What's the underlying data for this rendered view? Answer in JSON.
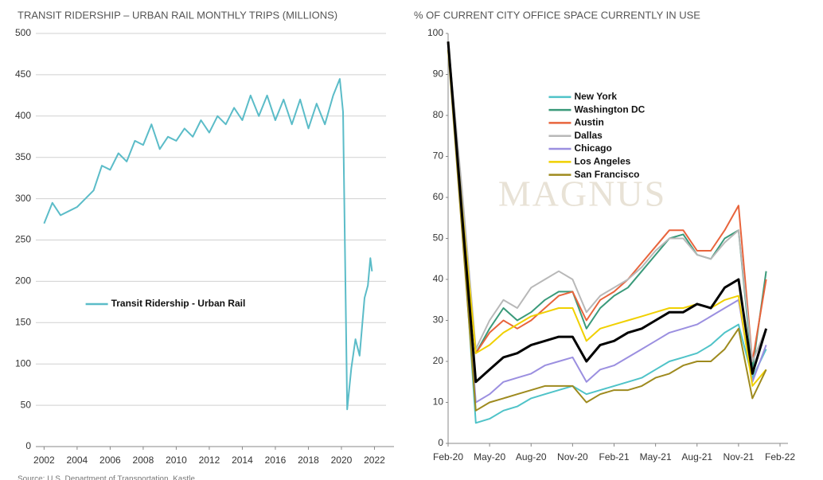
{
  "chart_data": [
    {
      "type": "line",
      "title": "TRANSIT RIDERSHIP – URBAN RAIL MONTHLY TRIPS (MILLIONS)",
      "source": "Source: U.S. Department of Transportation, Kastle",
      "xlim": [
        2001.5,
        2022.7
      ],
      "xticks": [
        2002,
        2004,
        2006,
        2008,
        2010,
        2012,
        2014,
        2016,
        2018,
        2020,
        2022
      ],
      "ylim": [
        0,
        500
      ],
      "yticks": [
        0,
        50,
        100,
        150,
        200,
        250,
        300,
        350,
        400,
        450,
        500
      ],
      "grid": true,
      "legend": "center-left",
      "x": [
        2002,
        2002.5,
        2003,
        2003.5,
        2004,
        2004.5,
        2005,
        2005.5,
        2006,
        2006.5,
        2007,
        2007.5,
        2008,
        2008.5,
        2009,
        2009.5,
        2010,
        2010.5,
        2011,
        2011.5,
        2012,
        2012.5,
        2013,
        2013.5,
        2014,
        2014.5,
        2015,
        2015.5,
        2016,
        2016.5,
        2017,
        2017.5,
        2018,
        2018.5,
        2019,
        2019.5,
        2019.9,
        2020.1,
        2020.35,
        2020.6,
        2020.85,
        2021.1,
        2021.4,
        2021.6,
        2021.75,
        2021.85
      ],
      "series": [
        {
          "name": "Transit Ridership - Urban Rail",
          "color": "#5bbcc8",
          "values": [
            270,
            295,
            280,
            285,
            290,
            300,
            310,
            340,
            335,
            355,
            345,
            370,
            365,
            390,
            360,
            375,
            370,
            385,
            375,
            395,
            380,
            400,
            390,
            410,
            395,
            425,
            400,
            425,
            395,
            420,
            390,
            420,
            385,
            415,
            390,
            425,
            445,
            405,
            45,
            95,
            130,
            110,
            180,
            195,
            228,
            212
          ]
        }
      ]
    },
    {
      "type": "line",
      "title": "% OF CURRENT CITY OFFICE SPACE CURRENTLY IN USE",
      "watermark": "MAGNUS",
      "xlim": [
        "2020-02",
        "2022-02"
      ],
      "xticks": [
        {
          "value": "2020-02",
          "label": "Feb-20"
        },
        {
          "value": "2020-05",
          "label": "May-20"
        },
        {
          "value": "2020-08",
          "label": "Aug-20"
        },
        {
          "value": "2020-11",
          "label": "Nov-20"
        },
        {
          "value": "2021-02",
          "label": "Feb-21"
        },
        {
          "value": "2021-05",
          "label": "May-21"
        },
        {
          "value": "2021-08",
          "label": "Aug-21"
        },
        {
          "value": "2021-11",
          "label": "Nov-21"
        },
        {
          "value": "2022-02",
          "label": "Feb-22"
        }
      ],
      "ylim": [
        0,
        100
      ],
      "yticks": [
        0,
        10,
        20,
        30,
        40,
        50,
        60,
        70,
        80,
        90,
        100
      ],
      "grid": false,
      "legend": "upper-center",
      "x": [
        "2020-02",
        "2020-03",
        "2020-04",
        "2020-05",
        "2020-06",
        "2020-07",
        "2020-08",
        "2020-09",
        "2020-10",
        "2020-11",
        "2020-12",
        "2021-01",
        "2021-02",
        "2021-03",
        "2021-04",
        "2021-05",
        "2021-06",
        "2021-07",
        "2021-08",
        "2021-09",
        "2021-10",
        "2021-11",
        "2021-12",
        "2022-01"
      ],
      "series": [
        {
          "name": "New York",
          "color": "#4fc3c8",
          "values": [
            98,
            55,
            5,
            6,
            8,
            9,
            11,
            12,
            13,
            14,
            12,
            13,
            14,
            15,
            16,
            18,
            20,
            21,
            22,
            24,
            27,
            29,
            16,
            23
          ]
        },
        {
          "name": "Washington DC",
          "color": "#3a9a7a",
          "values": [
            98,
            60,
            22,
            28,
            33,
            30,
            32,
            35,
            37,
            37,
            28,
            33,
            36,
            38,
            42,
            46,
            50,
            51,
            46,
            45,
            50,
            52,
            18,
            42
          ]
        },
        {
          "name": "Austin",
          "color": "#e8643c",
          "values": [
            98,
            60,
            22,
            27,
            30,
            28,
            30,
            33,
            36,
            37,
            30,
            35,
            37,
            40,
            44,
            48,
            52,
            52,
            47,
            47,
            52,
            58,
            20,
            40
          ]
        },
        {
          "name": "Dallas",
          "color": "#b8b8b8",
          "values": [
            98,
            62,
            23,
            30,
            35,
            33,
            38,
            40,
            42,
            40,
            32,
            36,
            38,
            40,
            43,
            47,
            50,
            50,
            46,
            45,
            49,
            52,
            20,
            28
          ]
        },
        {
          "name": "Chicago",
          "color": "#9b8fe0",
          "values": [
            97,
            55,
            10,
            12,
            15,
            16,
            17,
            19,
            20,
            21,
            15,
            18,
            19,
            21,
            23,
            25,
            27,
            28,
            29,
            31,
            33,
            35,
            15,
            24
          ]
        },
        {
          "name": "Los Angeles",
          "color": "#f0d000",
          "values": [
            96,
            58,
            22,
            24,
            27,
            29,
            31,
            32,
            33,
            33,
            25,
            28,
            29,
            30,
            31,
            32,
            33,
            33,
            34,
            33,
            35,
            36,
            14,
            18
          ]
        },
        {
          "name": "San Francisco",
          "color": "#9e8a1e",
          "values": [
            96,
            52,
            8,
            10,
            11,
            12,
            13,
            14,
            14,
            14,
            10,
            12,
            13,
            13,
            14,
            16,
            17,
            19,
            20,
            20,
            23,
            28,
            11,
            18
          ]
        },
        {
          "color": "#000000",
          "width": 3,
          "values": [
            98,
            56,
            15,
            18,
            21,
            22,
            24,
            25,
            26,
            26,
            20,
            24,
            25,
            27,
            28,
            30,
            32,
            32,
            34,
            33,
            38,
            40,
            17,
            28
          ]
        }
      ]
    }
  ]
}
